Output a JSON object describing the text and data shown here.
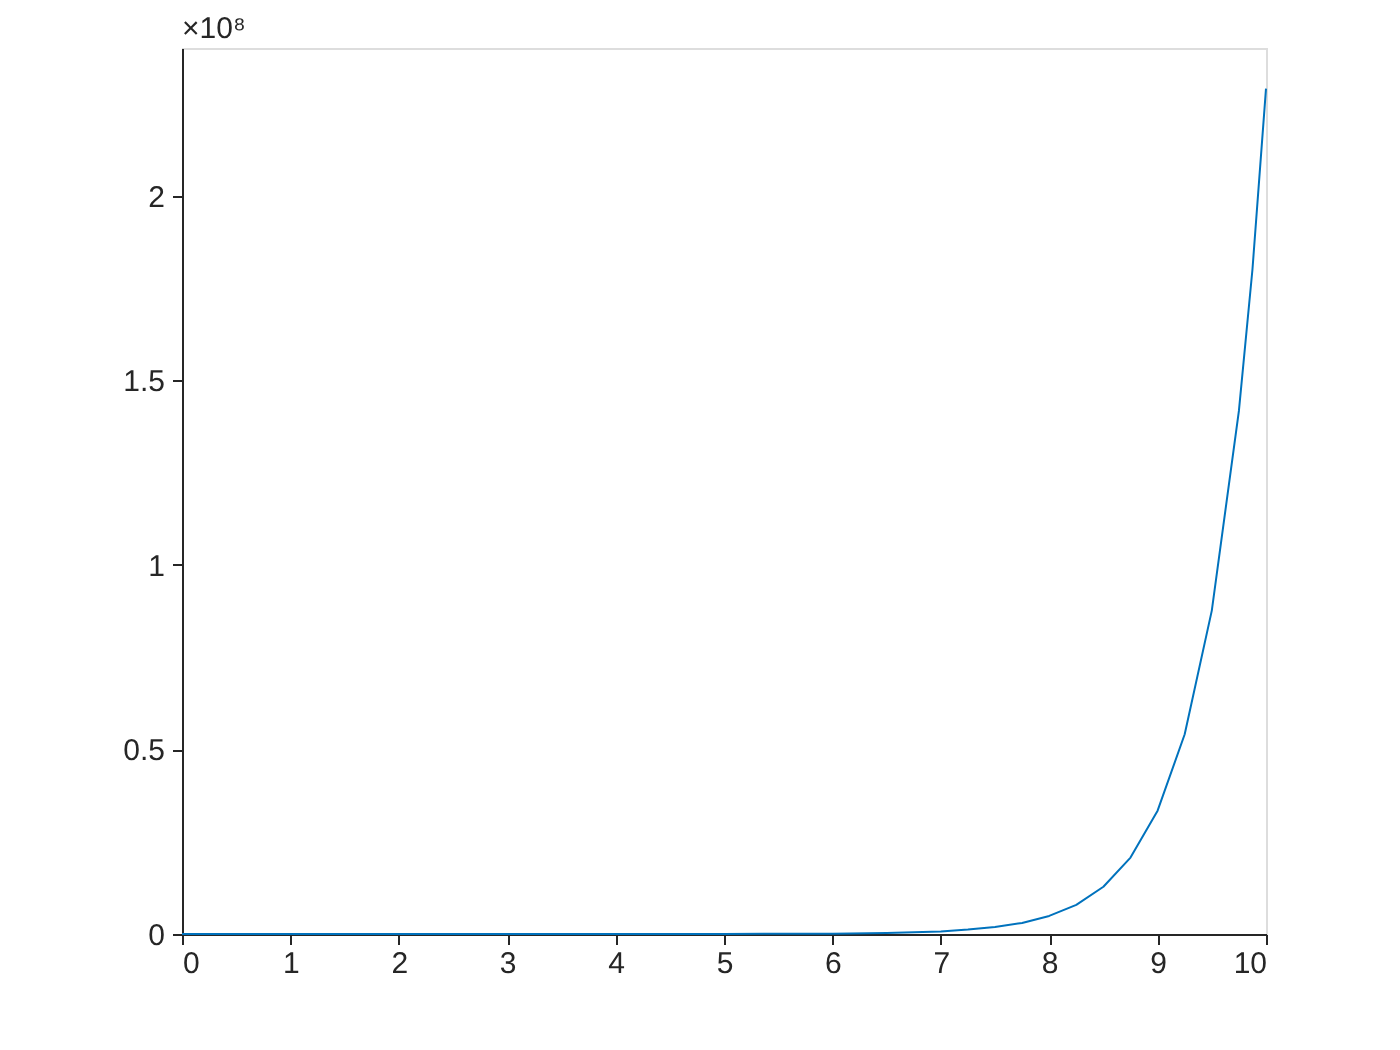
{
  "chart_data": {
    "type": "line",
    "x": [
      0,
      1,
      2,
      3,
      4,
      5,
      6,
      6.5,
      7,
      7.25,
      7.5,
      7.75,
      8,
      8.25,
      8.5,
      8.75,
      9,
      9.25,
      9.5,
      9.75,
      9.875,
      10
    ],
    "series": [
      {
        "color": "#0072bd",
        "values": [
          0,
          0,
          0,
          0,
          0,
          0,
          0.001,
          0.003,
          0.007,
          0.012,
          0.019,
          0.03,
          0.049,
          0.079,
          0.128,
          0.207,
          0.334,
          0.541,
          0.876,
          1.417,
          1.8,
          2.29
        ]
      }
    ],
    "xlim": [
      0,
      10
    ],
    "xticks": [
      0,
      1,
      2,
      3,
      4,
      5,
      6,
      7,
      8,
      9,
      10
    ],
    "ylim": [
      0,
      2.4
    ],
    "yticks": [
      0,
      0.5,
      1,
      1.5,
      2
    ],
    "annotations": [
      "×10⁸"
    ],
    "grid": false,
    "legend": false,
    "marker": "none",
    "line_style": "solid"
  }
}
